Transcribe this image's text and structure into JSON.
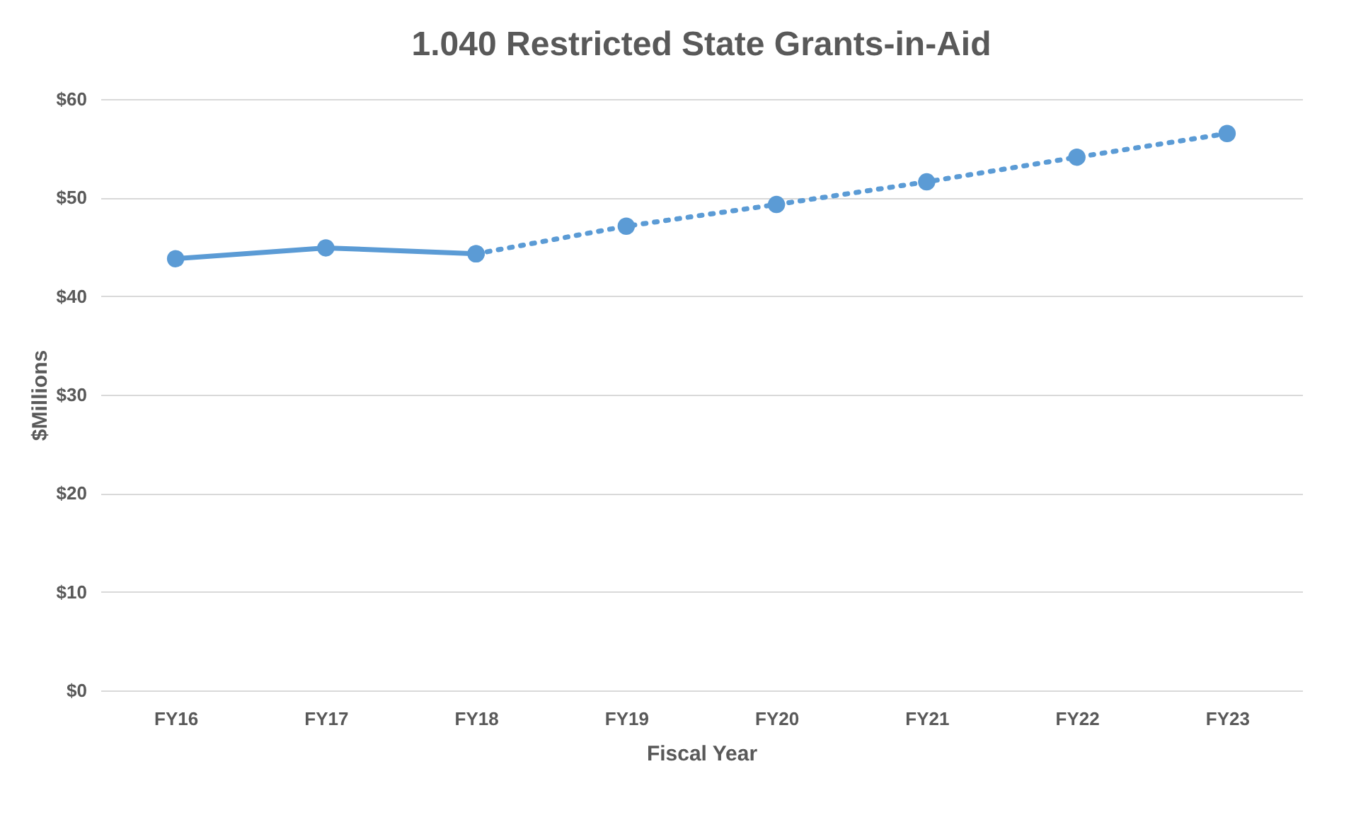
{
  "chart_data": {
    "type": "line",
    "title": "1.040 Restricted State Grants-in-Aid",
    "xlabel": "Fiscal Year",
    "ylabel": "$Millions",
    "categories": [
      "FY16",
      "FY17",
      "FY18",
      "FY19",
      "FY20",
      "FY21",
      "FY22",
      "FY23"
    ],
    "series": [
      {
        "color": "#5b9bd5",
        "line_style": "solid",
        "values": [
          43.8,
          44.9,
          44.3,
          null,
          null,
          null,
          null,
          null
        ]
      },
      {
        "color": "#5b9bd5",
        "line_style": "dotted",
        "values": [
          null,
          null,
          44.3,
          47.1,
          49.3,
          51.6,
          54.1,
          56.5
        ]
      }
    ],
    "ylim": [
      0,
      60
    ],
    "yticks": [
      {
        "value": 0,
        "label": "$0"
      },
      {
        "value": 10,
        "label": "$10"
      },
      {
        "value": 20,
        "label": "$20"
      },
      {
        "value": 30,
        "label": "$30"
      },
      {
        "value": 40,
        "label": "$40"
      },
      {
        "value": 50,
        "label": "$50"
      },
      {
        "value": 60,
        "label": "$60"
      }
    ],
    "grid": "y",
    "marker": "circle"
  }
}
